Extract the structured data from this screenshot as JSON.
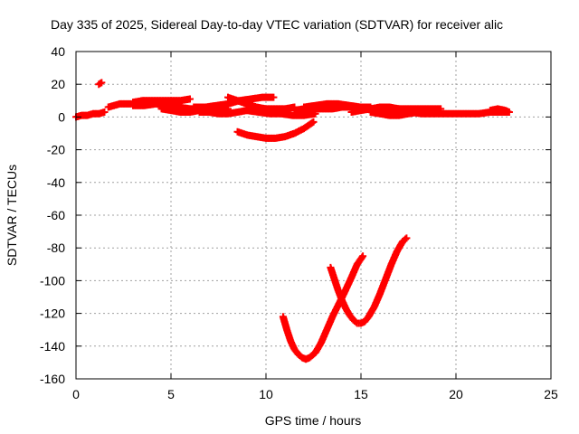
{
  "chart_data": {
    "type": "scatter",
    "title": "Day 335 of 2025, Sidereal Day-to-day VTEC variation (SDTVAR) for receiver alic",
    "xlabel": "GPS time / hours",
    "ylabel": "SDTVAR / TECUs",
    "xlim": [
      0,
      25
    ],
    "ylim": [
      -160,
      40
    ],
    "xticks": [
      0,
      5,
      10,
      15,
      20,
      25
    ],
    "yticks": [
      -160,
      -140,
      -120,
      -100,
      -80,
      -60,
      -40,
      -20,
      0,
      20,
      40
    ],
    "grid": true,
    "legend": "none",
    "marker": "plus",
    "color": "#ff0000",
    "series": [
      {
        "x": [
          0.0,
          0.3,
          0.6,
          0.9,
          1.2,
          1.5
        ],
        "y": [
          0,
          1,
          1,
          2,
          2,
          3
        ]
      },
      {
        "x": [
          1.2,
          1.35
        ],
        "y": [
          20,
          21
        ]
      },
      {
        "x": [
          1.7,
          2.0,
          2.3,
          2.6,
          2.9
        ],
        "y": [
          6,
          7,
          8,
          8,
          8
        ]
      },
      {
        "x": [
          3.0,
          3.5,
          4.0,
          4.5,
          5.0,
          5.5,
          6.0
        ],
        "y": [
          9,
          10,
          10,
          10,
          10,
          10,
          11
        ]
      },
      {
        "x": [
          3.0,
          3.6,
          4.2,
          4.8,
          5.4,
          6.0,
          6.6,
          7.2
        ],
        "y": [
          7,
          7,
          8,
          7,
          6,
          5,
          5,
          4
        ]
      },
      {
        "x": [
          4.5,
          5.0,
          5.5,
          6.0,
          6.5,
          7.0,
          7.5,
          8.0
        ],
        "y": [
          5,
          4,
          3,
          3,
          4,
          4,
          5,
          5
        ]
      },
      {
        "x": [
          6.2,
          6.8,
          7.4,
          8.0,
          8.6,
          9.2,
          9.8,
          10.4
        ],
        "y": [
          6,
          6,
          7,
          8,
          10,
          11,
          12,
          12
        ]
      },
      {
        "x": [
          6.5,
          7.0,
          7.5,
          8.0,
          8.5,
          9.0,
          9.5,
          10.0
        ],
        "y": [
          3,
          3,
          2,
          2,
          3,
          4,
          5,
          5
        ]
      },
      {
        "x": [
          8.0,
          8.5,
          9.0,
          9.5,
          10.0,
          10.5,
          11.0,
          11.5
        ],
        "y": [
          12,
          10,
          8,
          6,
          5,
          5,
          5,
          6
        ]
      },
      {
        "x": [
          8.5,
          9.0,
          9.5,
          10.0,
          10.5,
          11.0,
          11.5,
          12.0,
          12.5
        ],
        "y": [
          -9,
          -11,
          -12,
          -13,
          -13,
          -12,
          -10,
          -7,
          -3
        ]
      },
      {
        "x": [
          9.0,
          9.6,
          10.2,
          10.8,
          11.4,
          12.0,
          12.6
        ],
        "y": [
          4,
          3,
          2,
          2,
          1,
          1,
          2
        ]
      },
      {
        "x": [
          11.5,
          12.0,
          12.5,
          13.0,
          13.5,
          14.0,
          14.5,
          15.0,
          15.5
        ],
        "y": [
          4,
          5,
          5,
          5,
          5,
          6,
          6,
          6,
          6
        ]
      },
      {
        "x": [
          12.0,
          12.6,
          13.2,
          13.8,
          14.4,
          15.0,
          15.6,
          16.0
        ],
        "y": [
          6,
          7,
          8,
          8,
          7,
          6,
          5,
          4
        ]
      },
      {
        "x": [
          14.5,
          15.0,
          15.5,
          16.0,
          16.5,
          17.0
        ],
        "y": [
          3,
          4,
          5,
          6,
          6,
          5
        ]
      },
      {
        "x": [
          15.5,
          16.0,
          16.5,
          17.0,
          17.5,
          18.0,
          18.5
        ],
        "y": [
          3,
          2,
          1,
          1,
          2,
          3,
          4
        ]
      },
      {
        "x": [
          16.2,
          16.8,
          17.4,
          18.0,
          18.6,
          19.2
        ],
        "y": [
          5,
          5,
          5,
          5,
          5,
          5
        ]
      },
      {
        "x": [
          17.0,
          17.6,
          18.2,
          18.8,
          19.4,
          20.0,
          20.6,
          21.2,
          21.8,
          22.4,
          22.8
        ],
        "y": [
          3,
          3,
          2,
          2,
          2,
          2,
          2,
          2,
          3,
          3,
          3
        ]
      },
      {
        "x": [
          21.8,
          22.2,
          22.6,
          22.8
        ],
        "y": [
          4,
          5,
          4,
          3
        ]
      },
      {
        "x": [
          10.9,
          11.1,
          11.3,
          11.5,
          11.7,
          11.9,
          12.1,
          12.3,
          12.6,
          12.9,
          13.2,
          13.5,
          13.8,
          14.1,
          14.5,
          14.8,
          15.1
        ],
        "y": [
          -122,
          -130,
          -137,
          -142,
          -145,
          -147,
          -148,
          -147,
          -144,
          -138,
          -130,
          -122,
          -115,
          -108,
          -98,
          -90,
          -85
        ]
      },
      {
        "x": [
          13.4,
          13.6,
          13.8,
          14.0,
          14.2,
          14.4,
          14.6,
          14.8,
          15.0,
          15.2,
          15.4,
          15.7,
          16.0,
          16.3,
          16.6,
          16.9,
          17.2,
          17.4
        ],
        "y": [
          -92,
          -99,
          -106,
          -112,
          -117,
          -121,
          -124,
          -126,
          -126,
          -125,
          -122,
          -116,
          -108,
          -99,
          -90,
          -82,
          -76,
          -74
        ]
      }
    ]
  }
}
